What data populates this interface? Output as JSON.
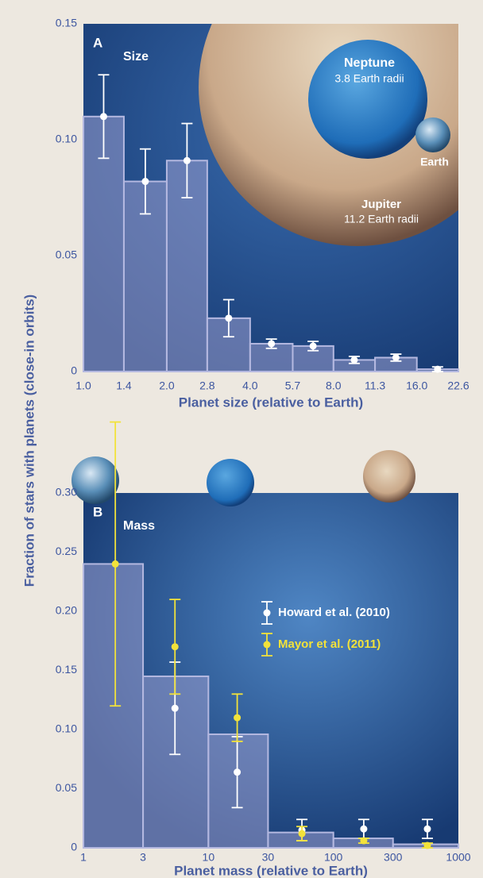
{
  "chart_data": [
    {
      "type": "histogram",
      "panel_label": "A",
      "title": "Size",
      "ylabel": "Fraction of stars with planets (close-in orbits)",
      "xlabel": "Planet size (relative to Earth)",
      "xlog": true,
      "color": "#9a9fd0",
      "point_color": "#ffffff",
      "bins": [
        1.0,
        1.4,
        2.0,
        2.8,
        4.0,
        5.7,
        8.0,
        11.3,
        16.0,
        22.6
      ],
      "values": [
        0.11,
        0.082,
        0.091,
        0.023,
        0.012,
        0.011,
        0.005,
        0.006,
        0.001
      ],
      "errors": [
        0.018,
        0.014,
        0.016,
        0.008,
        0.002,
        0.002,
        0.0015,
        0.0015,
        0.001
      ],
      "xlim": [
        1.0,
        22.6
      ],
      "xticks": [
        {
          "value": 1,
          "label": "1.0"
        },
        1.4,
        {
          "value": 2,
          "label": "2.0"
        },
        2.8,
        {
          "value": 4,
          "label": "4.0"
        },
        5.7,
        {
          "value": 8,
          "label": "8.0"
        },
        11.3,
        {
          "value": 16,
          "label": "16.0"
        },
        22.6
      ],
      "ylim": [
        0,
        0.15
      ],
      "yticks": [
        0,
        0.05,
        {
          "value": 0.1,
          "label": "0.10"
        },
        0.15
      ],
      "image_labels": [
        "Neptune",
        "3.8 Earth radii",
        "Earth",
        "Jupiter",
        "11.2 Earth radii"
      ]
    },
    {
      "type": "histogram",
      "panel_label": "B",
      "title": "Mass",
      "xlabel": "Planet mass (relative to Earth)",
      "xlog": true,
      "color": "#9a9fd0",
      "bins": [
        1,
        3,
        10,
        30,
        100,
        300,
        1000
      ],
      "values": [
        0.24,
        0.145,
        0.096,
        0.013,
        0.008,
        0.003
      ],
      "xlim": [
        1,
        1000
      ],
      "xticks": [
        1,
        3,
        10,
        30,
        100,
        300,
        1000
      ],
      "ylim": [
        0,
        0.3
      ],
      "yticks": [
        0,
        0.05,
        {
          "value": 0.1,
          "label": "0.10"
        },
        0.15,
        {
          "value": 0.2,
          "label": "0.20"
        },
        0.25,
        {
          "value": 0.3,
          "label": "0.30"
        }
      ],
      "series": [
        {
          "name": "Howard et al. (2010)",
          "color": "#ffffff",
          "x": [
            5.4,
            17,
            56,
            175,
            565
          ],
          "values": [
            0.118,
            0.064,
            0.015,
            0.016,
            0.016
          ],
          "errors": [
            0.039,
            0.03,
            0.009,
            0.008,
            0.008
          ]
        },
        {
          "name": "Mayor et al. (2011)",
          "color": "#f2e23a",
          "x": [
            1.8,
            5.4,
            17,
            56,
            175,
            565
          ],
          "values": [
            0.24,
            0.17,
            0.11,
            0.012,
            0.006,
            0.002
          ],
          "errors": [
            0.12,
            0.04,
            0.02,
            0.006,
            0.002,
            0.002
          ]
        }
      ]
    }
  ]
}
